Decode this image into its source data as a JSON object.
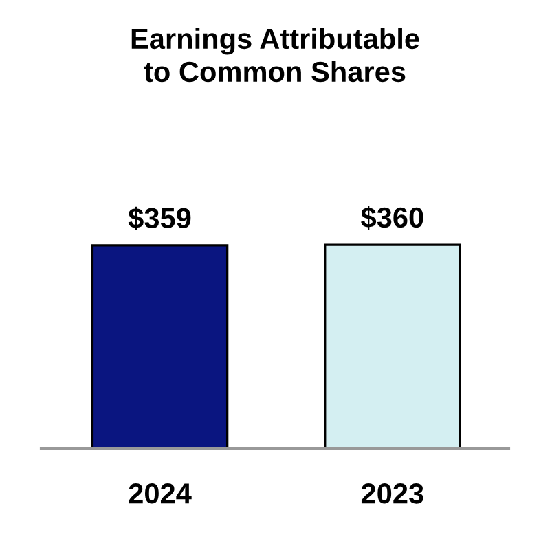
{
  "chart_data": {
    "type": "bar",
    "title": "Earnings Attributable\nto Common Shares",
    "categories": [
      "2024",
      "2023"
    ],
    "values": [
      359,
      360
    ],
    "colors": [
      "#0a1580",
      "#d4eff2"
    ],
    "value_labels": [
      "$359",
      "$360"
    ],
    "grid": false,
    "legend": false,
    "tick_labels": "x"
  }
}
